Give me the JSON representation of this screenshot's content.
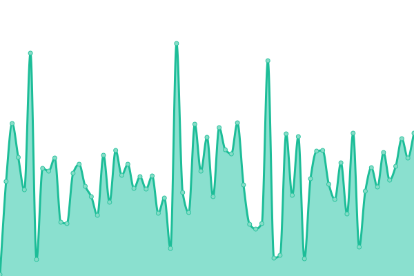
{
  "chart_data": {
    "type": "area",
    "title": "",
    "xlabel": "",
    "ylabel": "",
    "ylim": [
      0,
      400
    ],
    "grid": false,
    "legend": "none",
    "curve": "smooth",
    "markers": true,
    "colors": {
      "line": "#1dbd98",
      "fill": "#8ae0cf",
      "marker_fill": "#86dcc7",
      "marker_stroke": "#2cc39f"
    },
    "series": [
      {
        "values": [
          2,
          137,
          221,
          172,
          125,
          323,
          24,
          156,
          152,
          171,
          78,
          76,
          149,
          162,
          130,
          115,
          88,
          175,
          107,
          182,
          146,
          162,
          127,
          144,
          126,
          145,
          91,
          113,
          40,
          337,
          121,
          92,
          220,
          152,
          201,
          115,
          215,
          183,
          177,
          222,
          132,
          75,
          68,
          76,
          312,
          26,
          30,
          206,
          117,
          202,
          25,
          141,
          181,
          182,
          133,
          111,
          164,
          90,
          207,
          42,
          123,
          157,
          129,
          179,
          139,
          159,
          199,
          171,
          207
        ]
      }
    ]
  }
}
